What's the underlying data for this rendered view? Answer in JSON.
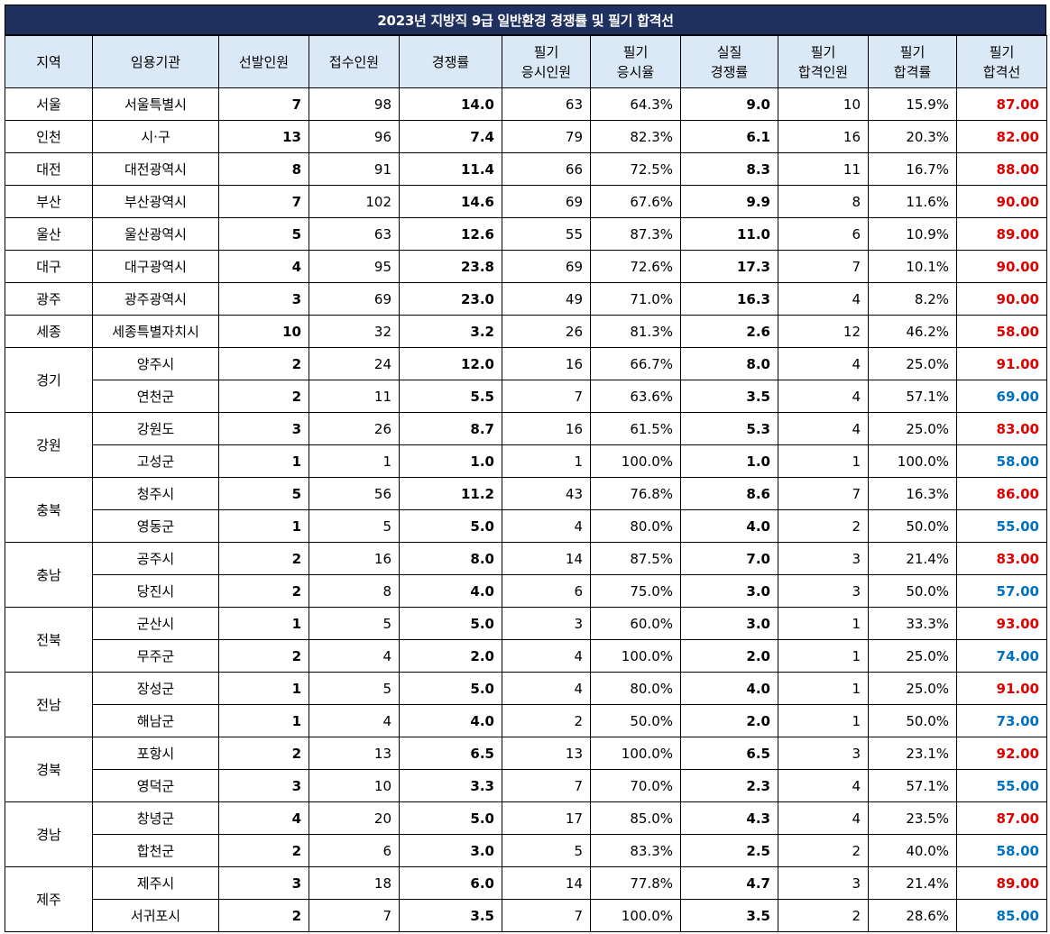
{
  "title": "2023년 지방직 9급 일반환경 경쟁률 및 필기 합격선",
  "headers": [
    [
      "지역"
    ],
    [
      "임용기관"
    ],
    [
      "선발인원"
    ],
    [
      "접수인원"
    ],
    [
      "경쟁률"
    ],
    [
      "필기",
      "응시인원"
    ],
    [
      "필기",
      "응시율"
    ],
    [
      "실질",
      "경쟁률"
    ],
    [
      "필기",
      "합격인원"
    ],
    [
      "필기",
      "합격률"
    ],
    [
      "필기",
      "합격선"
    ]
  ],
  "colors": {
    "title_bg": "#1f2f5e",
    "header_bg": "#dbe9f7",
    "cutoff_high": "#e00000",
    "cutoff_low": "#0070c0"
  },
  "groups": [
    {
      "region": "서울",
      "rows": [
        {
          "agency": "서울특별시",
          "sel": "7",
          "app": "98",
          "comp": "14.0",
          "taken": "63",
          "rate": "64.3%",
          "real": "9.0",
          "pass": "10",
          "passrate": "15.9%",
          "cutoff": "87.00",
          "cc": "red"
        }
      ]
    },
    {
      "region": "인천",
      "rows": [
        {
          "agency": "시·구",
          "sel": "13",
          "app": "96",
          "comp": "7.4",
          "taken": "79",
          "rate": "82.3%",
          "real": "6.1",
          "pass": "16",
          "passrate": "20.3%",
          "cutoff": "82.00",
          "cc": "red"
        }
      ]
    },
    {
      "region": "대전",
      "rows": [
        {
          "agency": "대전광역시",
          "sel": "8",
          "app": "91",
          "comp": "11.4",
          "taken": "66",
          "rate": "72.5%",
          "real": "8.3",
          "pass": "11",
          "passrate": "16.7%",
          "cutoff": "88.00",
          "cc": "red"
        }
      ]
    },
    {
      "region": "부산",
      "rows": [
        {
          "agency": "부산광역시",
          "sel": "7",
          "app": "102",
          "comp": "14.6",
          "taken": "69",
          "rate": "67.6%",
          "real": "9.9",
          "pass": "8",
          "passrate": "11.6%",
          "cutoff": "90.00",
          "cc": "red"
        }
      ]
    },
    {
      "region": "울산",
      "rows": [
        {
          "agency": "울산광역시",
          "sel": "5",
          "app": "63",
          "comp": "12.6",
          "taken": "55",
          "rate": "87.3%",
          "real": "11.0",
          "pass": "6",
          "passrate": "10.9%",
          "cutoff": "89.00",
          "cc": "red"
        }
      ]
    },
    {
      "region": "대구",
      "rows": [
        {
          "agency": "대구광역시",
          "sel": "4",
          "app": "95",
          "comp": "23.8",
          "taken": "69",
          "rate": "72.6%",
          "real": "17.3",
          "pass": "7",
          "passrate": "10.1%",
          "cutoff": "90.00",
          "cc": "red"
        }
      ]
    },
    {
      "region": "광주",
      "rows": [
        {
          "agency": "광주광역시",
          "sel": "3",
          "app": "69",
          "comp": "23.0",
          "taken": "49",
          "rate": "71.0%",
          "real": "16.3",
          "pass": "4",
          "passrate": "8.2%",
          "cutoff": "90.00",
          "cc": "red"
        }
      ]
    },
    {
      "region": "세종",
      "rows": [
        {
          "agency": "세종특별자치시",
          "sel": "10",
          "app": "32",
          "comp": "3.2",
          "taken": "26",
          "rate": "81.3%",
          "real": "2.6",
          "pass": "12",
          "passrate": "46.2%",
          "cutoff": "58.00",
          "cc": "red"
        }
      ]
    },
    {
      "region": "경기",
      "rows": [
        {
          "agency": "양주시",
          "sel": "2",
          "app": "24",
          "comp": "12.0",
          "taken": "16",
          "rate": "66.7%",
          "real": "8.0",
          "pass": "4",
          "passrate": "25.0%",
          "cutoff": "91.00",
          "cc": "red"
        },
        {
          "agency": "연천군",
          "sel": "2",
          "app": "11",
          "comp": "5.5",
          "taken": "7",
          "rate": "63.6%",
          "real": "3.5",
          "pass": "4",
          "passrate": "57.1%",
          "cutoff": "69.00",
          "cc": "blue"
        }
      ]
    },
    {
      "region": "강원",
      "rows": [
        {
          "agency": "강원도",
          "sel": "3",
          "app": "26",
          "comp": "8.7",
          "taken": "16",
          "rate": "61.5%",
          "real": "5.3",
          "pass": "4",
          "passrate": "25.0%",
          "cutoff": "83.00",
          "cc": "red"
        },
        {
          "agency": "고성군",
          "sel": "1",
          "app": "1",
          "comp": "1.0",
          "taken": "1",
          "rate": "100.0%",
          "real": "1.0",
          "pass": "1",
          "passrate": "100.0%",
          "cutoff": "58.00",
          "cc": "blue"
        }
      ]
    },
    {
      "region": "충북",
      "rows": [
        {
          "agency": "청주시",
          "sel": "5",
          "app": "56",
          "comp": "11.2",
          "taken": "43",
          "rate": "76.8%",
          "real": "8.6",
          "pass": "7",
          "passrate": "16.3%",
          "cutoff": "86.00",
          "cc": "red"
        },
        {
          "agency": "영동군",
          "sel": "1",
          "app": "5",
          "comp": "5.0",
          "taken": "4",
          "rate": "80.0%",
          "real": "4.0",
          "pass": "2",
          "passrate": "50.0%",
          "cutoff": "55.00",
          "cc": "blue"
        }
      ]
    },
    {
      "region": "충남",
      "rows": [
        {
          "agency": "공주시",
          "sel": "2",
          "app": "16",
          "comp": "8.0",
          "taken": "14",
          "rate": "87.5%",
          "real": "7.0",
          "pass": "3",
          "passrate": "21.4%",
          "cutoff": "83.00",
          "cc": "red"
        },
        {
          "agency": "당진시",
          "sel": "2",
          "app": "8",
          "comp": "4.0",
          "taken": "6",
          "rate": "75.0%",
          "real": "3.0",
          "pass": "3",
          "passrate": "50.0%",
          "cutoff": "57.00",
          "cc": "blue"
        }
      ]
    },
    {
      "region": "전북",
      "rows": [
        {
          "agency": "군산시",
          "sel": "1",
          "app": "5",
          "comp": "5.0",
          "taken": "3",
          "rate": "60.0%",
          "real": "3.0",
          "pass": "1",
          "passrate": "33.3%",
          "cutoff": "93.00",
          "cc": "red"
        },
        {
          "agency": "무주군",
          "sel": "2",
          "app": "4",
          "comp": "2.0",
          "taken": "4",
          "rate": "100.0%",
          "real": "2.0",
          "pass": "1",
          "passrate": "25.0%",
          "cutoff": "74.00",
          "cc": "blue"
        }
      ]
    },
    {
      "region": "전남",
      "rows": [
        {
          "agency": "장성군",
          "sel": "1",
          "app": "5",
          "comp": "5.0",
          "taken": "4",
          "rate": "80.0%",
          "real": "4.0",
          "pass": "1",
          "passrate": "25.0%",
          "cutoff": "91.00",
          "cc": "red"
        },
        {
          "agency": "해남군",
          "sel": "1",
          "app": "4",
          "comp": "4.0",
          "taken": "2",
          "rate": "50.0%",
          "real": "2.0",
          "pass": "1",
          "passrate": "50.0%",
          "cutoff": "73.00",
          "cc": "blue"
        }
      ]
    },
    {
      "region": "경북",
      "rows": [
        {
          "agency": "포항시",
          "sel": "2",
          "app": "13",
          "comp": "6.5",
          "taken": "13",
          "rate": "100.0%",
          "real": "6.5",
          "pass": "3",
          "passrate": "23.1%",
          "cutoff": "92.00",
          "cc": "red"
        },
        {
          "agency": "영덕군",
          "sel": "3",
          "app": "10",
          "comp": "3.3",
          "taken": "7",
          "rate": "70.0%",
          "real": "2.3",
          "pass": "4",
          "passrate": "57.1%",
          "cutoff": "55.00",
          "cc": "blue"
        }
      ]
    },
    {
      "region": "경남",
      "rows": [
        {
          "agency": "창녕군",
          "sel": "4",
          "app": "20",
          "comp": "5.0",
          "taken": "17",
          "rate": "85.0%",
          "real": "4.3",
          "pass": "4",
          "passrate": "23.5%",
          "cutoff": "87.00",
          "cc": "red"
        },
        {
          "agency": "합천군",
          "sel": "2",
          "app": "6",
          "comp": "3.0",
          "taken": "5",
          "rate": "83.3%",
          "real": "2.5",
          "pass": "2",
          "passrate": "40.0%",
          "cutoff": "58.00",
          "cc": "blue"
        }
      ]
    },
    {
      "region": "제주",
      "rows": [
        {
          "agency": "제주시",
          "sel": "3",
          "app": "18",
          "comp": "6.0",
          "taken": "14",
          "rate": "77.8%",
          "real": "4.7",
          "pass": "3",
          "passrate": "21.4%",
          "cutoff": "89.00",
          "cc": "red"
        },
        {
          "agency": "서귀포시",
          "sel": "2",
          "app": "7",
          "comp": "3.5",
          "taken": "7",
          "rate": "100.0%",
          "real": "3.5",
          "pass": "2",
          "passrate": "28.6%",
          "cutoff": "85.00",
          "cc": "blue"
        }
      ]
    }
  ]
}
